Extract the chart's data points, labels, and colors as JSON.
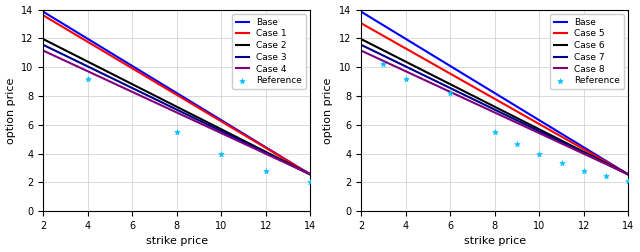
{
  "xlim": [
    2,
    14
  ],
  "ylim": [
    0,
    14
  ],
  "xticks": [
    2,
    4,
    6,
    8,
    10,
    12,
    14
  ],
  "yticks": [
    0,
    2,
    4,
    6,
    8,
    10,
    12,
    14
  ],
  "xlabel": "strike price",
  "ylabel": "option price",
  "left_lines": [
    {
      "label": "Base",
      "color": "#0000ff",
      "lw": 1.5,
      "y2": 13.85,
      "y14": 2.55
    },
    {
      "label": "Case 1",
      "color": "#ff0000",
      "lw": 1.5,
      "y2": 13.6,
      "y14": 2.55
    },
    {
      "label": "Case 2",
      "color": "#000000",
      "lw": 1.5,
      "y2": 11.95,
      "y14": 2.55
    },
    {
      "label": "Case 3",
      "color": "#00008b",
      "lw": 1.5,
      "y2": 11.55,
      "y14": 2.55
    },
    {
      "label": "Case 4",
      "color": "#800080",
      "lw": 1.5,
      "y2": 11.15,
      "y14": 2.55
    }
  ],
  "right_lines": [
    {
      "label": "Base",
      "color": "#0000ff",
      "lw": 1.5,
      "y2": 13.85,
      "y14": 2.55
    },
    {
      "label": "Case 5",
      "color": "#ff0000",
      "lw": 1.5,
      "y2": 13.05,
      "y14": 2.55
    },
    {
      "label": "Case 6",
      "color": "#000000",
      "lw": 1.5,
      "y2": 11.95,
      "y14": 2.55
    },
    {
      "label": "Case 7",
      "color": "#00008b",
      "lw": 1.5,
      "y2": 11.55,
      "y14": 2.55
    },
    {
      "label": "Case 8",
      "color": "#800080",
      "lw": 1.5,
      "y2": 11.15,
      "y14": 2.55
    }
  ],
  "left_ref_x": [
    4,
    8,
    10,
    12,
    14
  ],
  "left_ref_y": [
    9.2,
    5.52,
    3.95,
    2.78,
    2.0
  ],
  "right_ref_x": [
    3,
    4,
    6,
    8,
    9,
    10,
    11,
    12,
    13,
    14
  ],
  "right_ref_y": [
    10.25,
    9.15,
    8.2,
    5.52,
    4.65,
    3.97,
    3.35,
    2.8,
    2.42,
    2.1
  ],
  "ref_color": "#00bfff",
  "ref_marker": "*",
  "ref_markersize": 4,
  "figsize": [
    6.4,
    2.52
  ],
  "dpi": 100,
  "grid": true,
  "grid_color": "#cccccc",
  "grid_lw": 0.5
}
